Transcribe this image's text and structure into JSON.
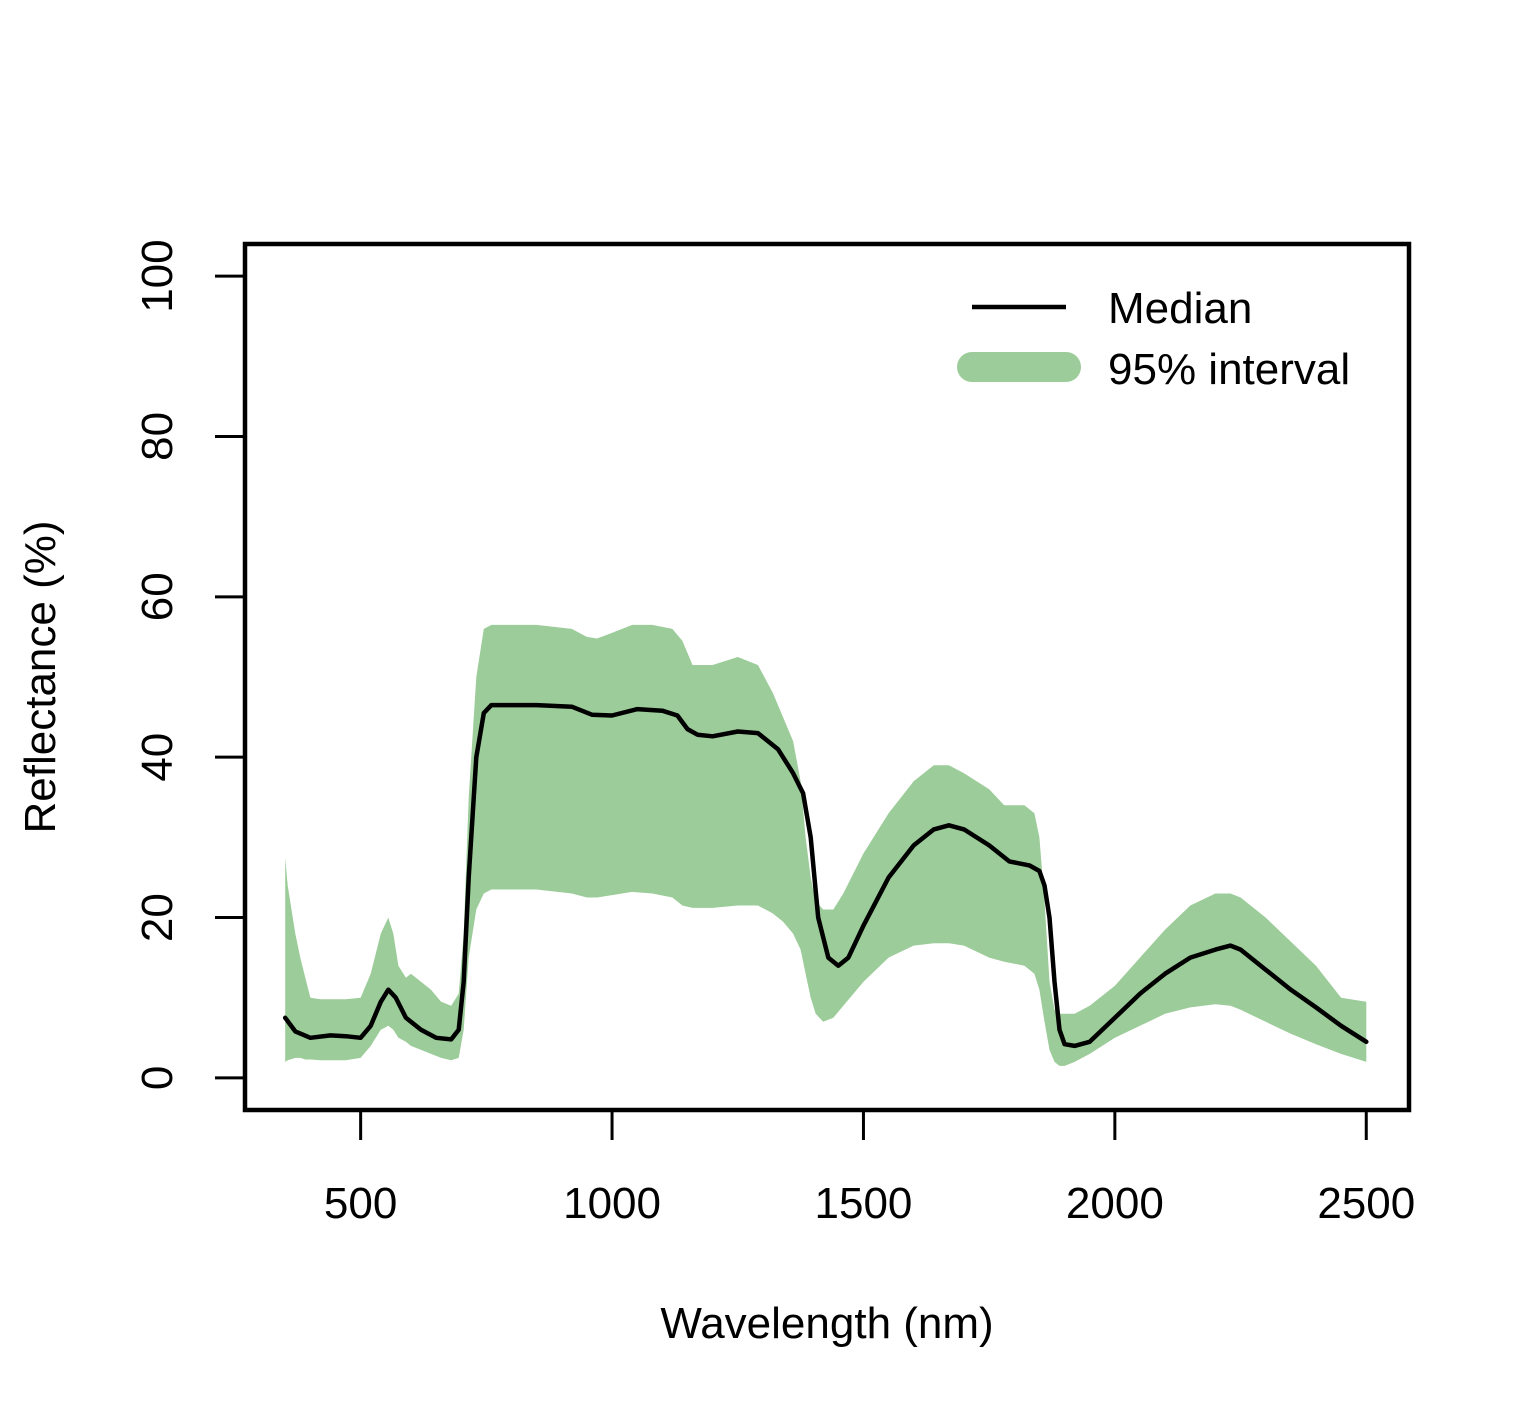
{
  "chart_data": {
    "type": "line",
    "xlabel": "Wavelength (nm)",
    "ylabel": "Reflectance (%)",
    "xlim": [
      270,
      2585
    ],
    "ylim": [
      -4,
      104
    ],
    "xticks": [
      500,
      1000,
      1500,
      2000,
      2500
    ],
    "yticks": [
      0,
      20,
      40,
      60,
      80,
      100
    ],
    "grid": false,
    "legend_position": "top-right",
    "legend": [
      {
        "label": "Median",
        "kind": "line",
        "color": "#000000"
      },
      {
        "label": "95% interval",
        "kind": "band",
        "color": "#9ccc99"
      }
    ],
    "series": [
      {
        "name": "Median",
        "color": "#000000",
        "x": [
          350,
          370,
          400,
          440,
          470,
          500,
          520,
          540,
          555,
          570,
          590,
          620,
          650,
          680,
          695,
          705,
          715,
          730,
          745,
          760,
          780,
          850,
          920,
          960,
          1000,
          1050,
          1100,
          1130,
          1150,
          1170,
          1200,
          1250,
          1290,
          1330,
          1360,
          1380,
          1395,
          1410,
          1430,
          1450,
          1470,
          1500,
          1550,
          1600,
          1640,
          1670,
          1700,
          1750,
          1790,
          1830,
          1850,
          1860,
          1870,
          1880,
          1890,
          1900,
          1920,
          1950,
          2000,
          2050,
          2100,
          2150,
          2200,
          2230,
          2250,
          2300,
          2350,
          2400,
          2450,
          2500
        ],
        "y": [
          7.5,
          5.8,
          5.0,
          5.3,
          5.2,
          5.0,
          6.5,
          9.5,
          11.0,
          10.0,
          7.5,
          6.0,
          5.0,
          4.8,
          6.0,
          12.0,
          25.0,
          40.0,
          45.5,
          46.5,
          46.5,
          46.5,
          46.3,
          45.3,
          45.2,
          46.0,
          45.8,
          45.2,
          43.5,
          42.8,
          42.6,
          43.2,
          43.0,
          41.0,
          38.0,
          35.5,
          30.0,
          20.0,
          15.0,
          14.0,
          15.0,
          19.0,
          25.0,
          29.0,
          31.0,
          31.5,
          31.0,
          29.0,
          27.0,
          26.5,
          25.8,
          24.0,
          20.0,
          12.0,
          6.0,
          4.2,
          4.0,
          4.5,
          7.5,
          10.5,
          13.0,
          15.0,
          16.0,
          16.5,
          16.0,
          13.5,
          11.0,
          8.8,
          6.5,
          4.5
        ]
      },
      {
        "name": "95% interval",
        "color": "#9ccc99",
        "x": [
          350,
          355,
          370,
          380,
          390,
          400,
          420,
          440,
          470,
          500,
          520,
          540,
          555,
          565,
          575,
          590,
          600,
          620,
          640,
          660,
          680,
          695,
          705,
          715,
          730,
          745,
          760,
          780,
          850,
          920,
          950,
          970,
          1000,
          1040,
          1080,
          1120,
          1140,
          1160,
          1200,
          1250,
          1290,
          1320,
          1340,
          1360,
          1375,
          1385,
          1395,
          1405,
          1420,
          1440,
          1460,
          1500,
          1550,
          1600,
          1640,
          1670,
          1700,
          1750,
          1780,
          1820,
          1840,
          1850,
          1860,
          1870,
          1880,
          1890,
          1900,
          1920,
          1950,
          2000,
          2050,
          2100,
          2150,
          2200,
          2230,
          2250,
          2300,
          2350,
          2400,
          2450,
          2500
        ],
        "upper": [
          27.5,
          24.0,
          18.0,
          15.0,
          12.5,
          10.0,
          9.8,
          9.8,
          9.8,
          10.0,
          13.0,
          18.0,
          20.0,
          18.0,
          14.0,
          12.5,
          13.0,
          12.0,
          11.0,
          9.5,
          9.0,
          10.5,
          18.0,
          35.0,
          50.0,
          56.0,
          56.5,
          56.5,
          56.5,
          56.0,
          55.0,
          54.8,
          55.5,
          56.5,
          56.5,
          56.0,
          54.5,
          51.5,
          51.5,
          52.5,
          51.5,
          48.0,
          45.0,
          42.0,
          37.0,
          30.0,
          25.0,
          22.0,
          21.0,
          21.0,
          23.0,
          28.0,
          33.0,
          37.0,
          39.0,
          39.0,
          38.0,
          36.0,
          34.0,
          34.0,
          33.0,
          30.0,
          22.0,
          12.0,
          8.5,
          8.0,
          8.0,
          8.0,
          9.0,
          11.5,
          15.0,
          18.5,
          21.5,
          23.0,
          23.0,
          22.5,
          20.0,
          17.0,
          14.0,
          10.0,
          9.5
        ],
        "lower": [
          2.0,
          2.2,
          2.5,
          2.5,
          2.3,
          2.3,
          2.2,
          2.2,
          2.2,
          2.5,
          4.0,
          6.0,
          6.5,
          6.0,
          5.0,
          4.5,
          4.0,
          3.5,
          3.0,
          2.5,
          2.2,
          2.5,
          6.0,
          15.0,
          21.0,
          23.0,
          23.5,
          23.5,
          23.5,
          23.0,
          22.5,
          22.5,
          22.8,
          23.2,
          23.0,
          22.5,
          21.5,
          21.2,
          21.2,
          21.5,
          21.5,
          20.5,
          19.5,
          18.0,
          16.0,
          13.0,
          10.0,
          8.0,
          7.0,
          7.5,
          9.0,
          12.0,
          15.0,
          16.5,
          16.8,
          16.8,
          16.5,
          15.0,
          14.5,
          14.0,
          13.0,
          11.0,
          7.0,
          3.5,
          2.0,
          1.5,
          1.5,
          2.0,
          3.0,
          5.0,
          6.5,
          8.0,
          8.8,
          9.2,
          9.0,
          8.5,
          7.0,
          5.5,
          4.2,
          3.0,
          2.0
        ]
      }
    ]
  }
}
